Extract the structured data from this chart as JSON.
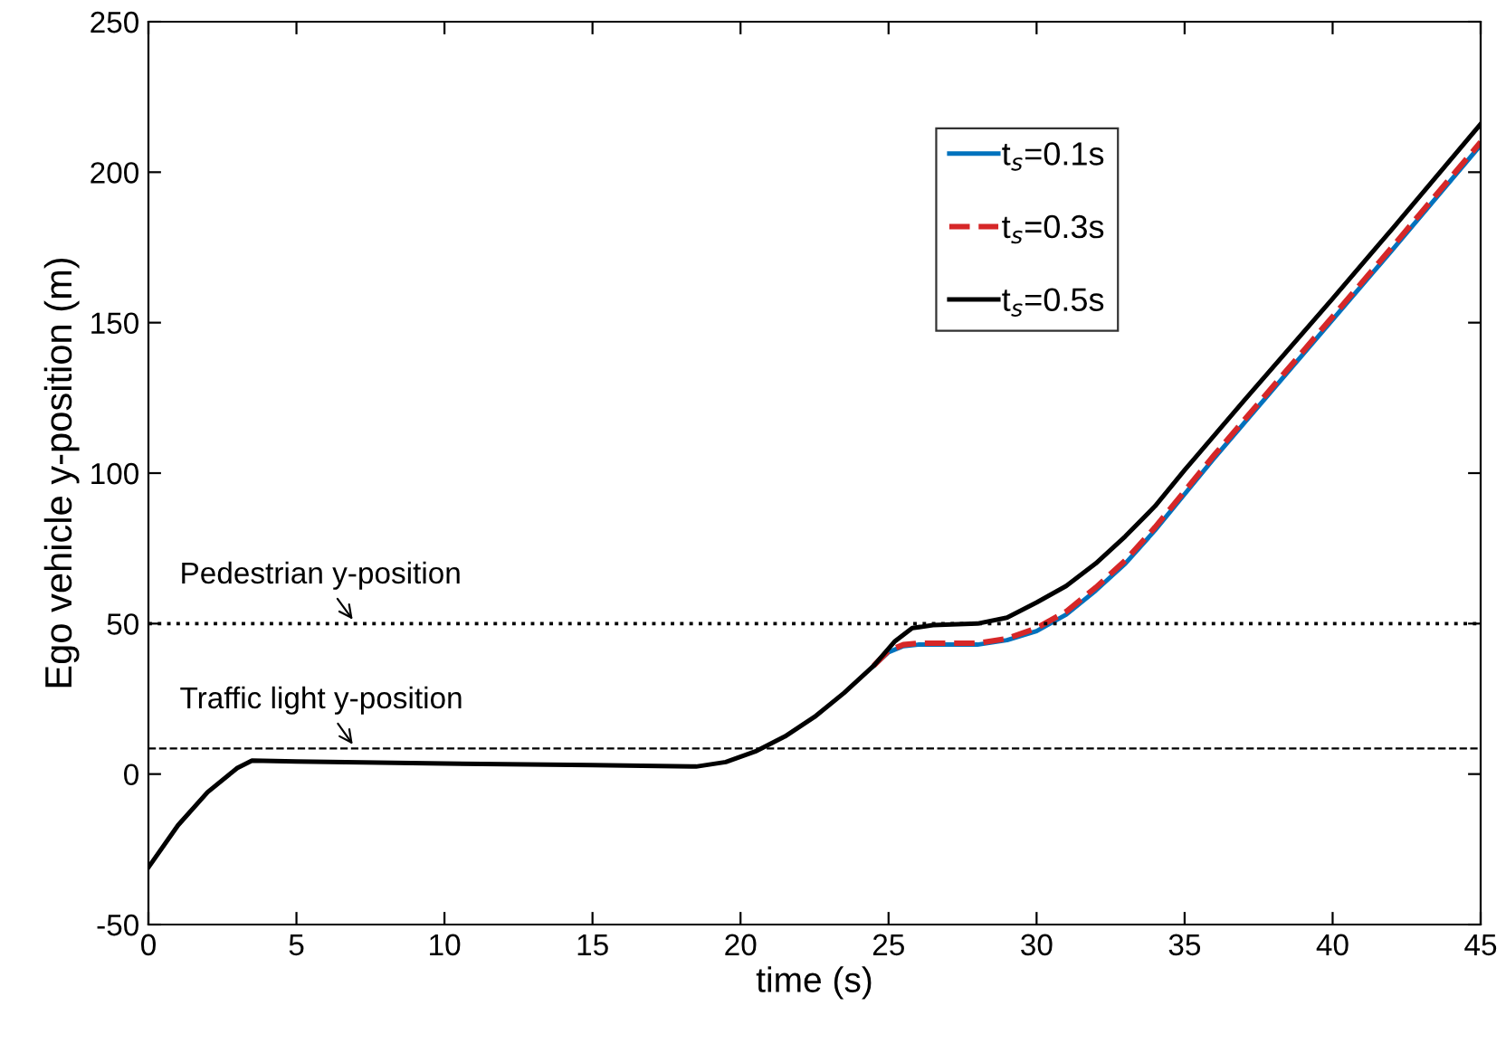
{
  "chart_data": {
    "type": "line",
    "xlabel": "time (s)",
    "ylabel": "Ego vehicle y-position (m)",
    "xlim": [
      0,
      45
    ],
    "xticks": [
      0,
      5,
      10,
      15,
      20,
      25,
      30,
      35,
      40,
      45
    ],
    "ylim": [
      -50,
      250
    ],
    "yticks": [
      -50,
      0,
      50,
      100,
      150,
      200,
      250
    ],
    "grid": false,
    "legend": "top right",
    "marker": "none",
    "series": [
      {
        "name": "t$_{s}$=0.1s",
        "color": "#0072bd",
        "line_style": "solid",
        "x": [
          24.5,
          25,
          25.5,
          26,
          28,
          29,
          30,
          31,
          32,
          33,
          34,
          35,
          36,
          37,
          40,
          42,
          45
        ],
        "values": [
          36,
          40.5,
          42.5,
          43,
          43,
          44.5,
          47.5,
          53,
          61,
          70,
          81,
          93,
          105,
          116.5,
          151,
          174,
          209
        ]
      },
      {
        "name": "t$_{s}$=0.3s",
        "color": "#d62728",
        "line_style": "dashed",
        "x": [
          24.5,
          25,
          25.5,
          26,
          28,
          29,
          30,
          31,
          32,
          33,
          34,
          35,
          36,
          37,
          40,
          42,
          45
        ],
        "values": [
          36,
          41,
          43,
          43.5,
          43.5,
          45,
          48.5,
          54,
          62,
          71,
          82,
          94,
          106,
          117.5,
          152,
          175,
          210
        ]
      },
      {
        "name": "t$_{s}$=0.5s",
        "color": "#000000",
        "line_style": "solid",
        "x": [
          0,
          1,
          2,
          3,
          3.5,
          5,
          10,
          15,
          18.5,
          19.5,
          20.5,
          21.5,
          22.5,
          23.5,
          24.5,
          25.2,
          25.8,
          26.5,
          28,
          29,
          30,
          31,
          32,
          33,
          34,
          35,
          37,
          40,
          42,
          45
        ],
        "values": [
          -31,
          -17,
          -6,
          2,
          4.5,
          4.2,
          3.5,
          3,
          2.5,
          4,
          7.5,
          12.5,
          19,
          27,
          36,
          44,
          48.5,
          49.5,
          50,
          52,
          57,
          62.5,
          70,
          79,
          89,
          101,
          124,
          158,
          181,
          216
        ]
      }
    ],
    "ref_lines": [
      {
        "axis": "y",
        "value": 50,
        "color": "#000000",
        "line_style": "dotted"
      },
      {
        "axis": "y",
        "value": 8.5,
        "color": "#000000",
        "line_style": "dashed"
      }
    ],
    "annotations": [
      {
        "text": "Pedestrian y-position",
        "x": 7,
        "y": 50
      },
      {
        "text": "Traffic light y-position",
        "x": 7,
        "y": 8.5
      }
    ]
  }
}
